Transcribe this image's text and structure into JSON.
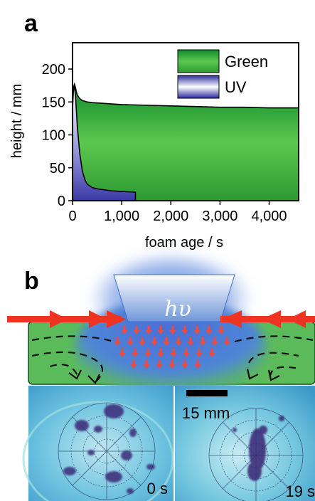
{
  "panel_a": {
    "label": "a"
  },
  "panel_b": {
    "label": "b",
    "light_symbol": "hυ"
  },
  "chart_data": {
    "type": "area",
    "xlabel": "foam age / s",
    "ylabel": "height / mm",
    "xlim": [
      0,
      4600
    ],
    "ylim": [
      0,
      240
    ],
    "x_ticks": [
      0,
      1000,
      2000,
      3000,
      4000
    ],
    "x_tick_labels": [
      "0",
      "1,000",
      "2,000",
      "3,000",
      "4,000"
    ],
    "y_ticks": [
      0,
      50,
      100,
      150,
      200
    ],
    "y_tick_labels": [
      "0",
      "50",
      "100",
      "150",
      "200"
    ],
    "legend_position": "top-right",
    "grid": false,
    "series": [
      {
        "name": "Green",
        "color": "#2fae3a",
        "x": [
          0,
          20,
          40,
          60,
          80,
          100,
          150,
          200,
          300,
          400,
          600,
          800,
          1000,
          1500,
          2000,
          2500,
          3000,
          3500,
          4000,
          4600
        ],
        "y": [
          140,
          172,
          177,
          172,
          165,
          160,
          155,
          152,
          150,
          149,
          148,
          147,
          146,
          145,
          144,
          143,
          142,
          142,
          141,
          141
        ]
      },
      {
        "name": "UV",
        "color": "#3a3aa8",
        "x": [
          0,
          20,
          40,
          60,
          80,
          100,
          150,
          200,
          250,
          300,
          400,
          500,
          600,
          800,
          1000,
          1280
        ],
        "y": [
          140,
          170,
          172,
          158,
          135,
          110,
          70,
          45,
          32,
          25,
          20,
          18,
          17,
          15,
          14,
          13
        ]
      }
    ]
  },
  "photos": {
    "scale_bar_label": "15 mm",
    "left_time": "0 s",
    "right_time": "19 s"
  }
}
